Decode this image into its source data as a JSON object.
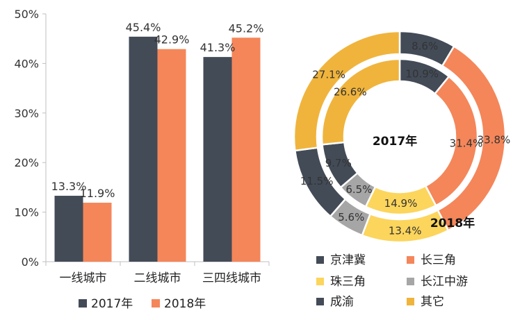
{
  "chart_data": [
    {
      "type": "bar",
      "categories": [
        "一线城市",
        "二线城市",
        "三四线城市"
      ],
      "series": [
        {
          "name": "2017年",
          "values": [
            13.3,
            45.4,
            41.3
          ],
          "labels": [
            "13.3%",
            "45.4%",
            "41.3%"
          ],
          "color": "#434b57"
        },
        {
          "name": "2018年",
          "values": [
            11.9,
            42.9,
            45.2
          ],
          "labels": [
            "11.9%",
            "42.9%",
            "45.2%"
          ],
          "color": "#f4865a"
        }
      ],
      "ylim": [
        0,
        50
      ],
      "yticks": [
        0,
        10,
        20,
        30,
        40,
        50
      ],
      "ytick_labels": [
        "0%",
        "10%",
        "20%",
        "30%",
        "40%",
        "50%"
      ],
      "legend_position": "bottom",
      "xlabel": "",
      "ylabel": ""
    },
    {
      "type": "pie",
      "style": "double-donut",
      "categories": [
        "京津冀",
        "长三角",
        "珠三角",
        "长江中游",
        "成渝",
        "其它"
      ],
      "colors": [
        "#434b57",
        "#f4865a",
        "#fcd55c",
        "#a6a6a6",
        "#434b57",
        "#f0b43c"
      ],
      "series": [
        {
          "name": "2017年",
          "ring": "inner",
          "values": [
            10.9,
            31.4,
            14.9,
            6.5,
            9.7,
            26.6
          ],
          "labels": [
            "10.9%",
            "31.4%",
            "14.9%",
            "6.5%",
            "9.7%",
            "26.6%"
          ]
        },
        {
          "name": "2018年",
          "ring": "outer",
          "values": [
            8.6,
            33.8,
            13.4,
            5.6,
            11.5,
            27.1
          ],
          "labels": [
            "8.6%",
            "33.8%",
            "13.4%",
            "5.6%",
            "11.5%",
            "27.1%"
          ]
        }
      ],
      "inner_title": "2017年",
      "outer_title": "2018年",
      "legend_position": "bottom"
    }
  ]
}
